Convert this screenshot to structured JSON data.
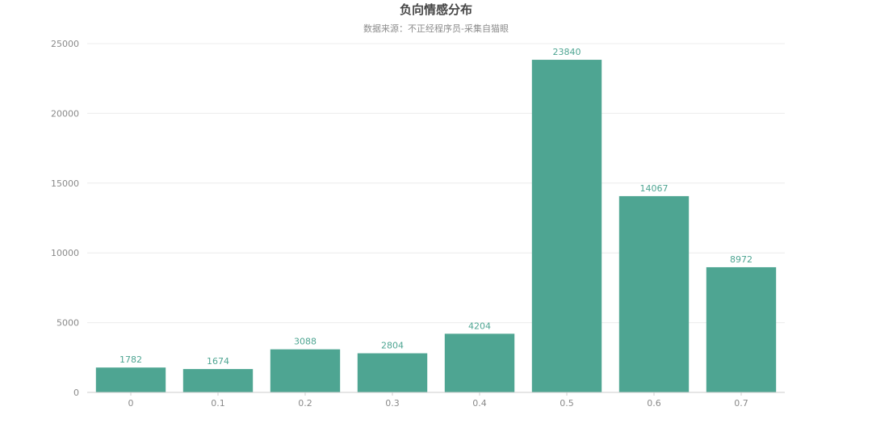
{
  "chart_data": {
    "type": "bar",
    "title": "负向情感分布",
    "subtitle": "数据来源：不正经程序员-采集自猫眼",
    "categories": [
      "0",
      "0.1",
      "0.2",
      "0.3",
      "0.4",
      "0.5",
      "0.6",
      "0.7"
    ],
    "values": [
      1782,
      1674,
      3088,
      2804,
      4204,
      23840,
      14067,
      8972
    ],
    "ylim": [
      0,
      25000
    ],
    "yticks": [
      0,
      5000,
      10000,
      15000,
      20000,
      25000
    ],
    "grid": true,
    "show_data_labels": true,
    "bar_color": "#4ea592",
    "label_color": "#4ea592",
    "axis_color": "#cccccc",
    "grid_color": "#ececec"
  }
}
